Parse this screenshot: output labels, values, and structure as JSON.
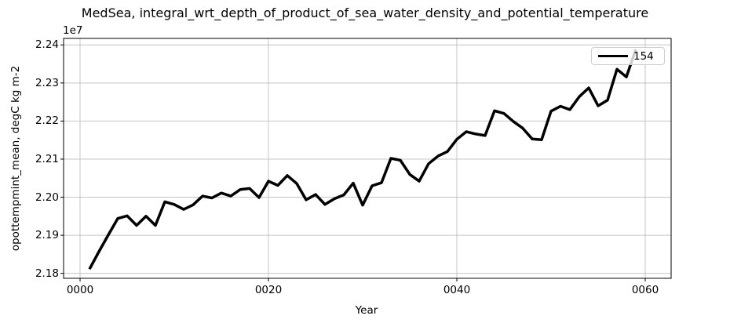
{
  "title": "MedSea, integral_wrt_depth_of_product_of_sea_water_density_and_potential_temperature",
  "legend": {
    "label": "154",
    "line_color": "#000000",
    "position": "upper right"
  },
  "colors": {
    "line": "#000000",
    "grid": "#c4c4c4",
    "spine": "#000000",
    "text": "#000000",
    "legend_border": "#cccccc"
  },
  "chart_data": {
    "type": "line",
    "title": "MedSea, integral_wrt_depth_of_product_of_sea_water_density_and_potential_temperature",
    "xlabel": "Year",
    "ylabel": "opottempmint_mean, degC kg m-2",
    "y_offset_label": "1e7",
    "y_unit_multiplier": 10000000.0,
    "grid": true,
    "xlim": [
      -1.75,
      62.75
    ],
    "ylim": [
      2.1787,
      2.2417
    ],
    "xticks": {
      "values": [
        0,
        20,
        40,
        60
      ],
      "labels": [
        "0000",
        "0020",
        "0040",
        "0060"
      ]
    },
    "yticks": {
      "values": [
        2.18,
        2.19,
        2.2,
        2.21,
        2.22,
        2.23,
        2.24
      ],
      "labels": [
        "2.18",
        "2.19",
        "2.20",
        "2.21",
        "2.22",
        "2.23",
        "2.24"
      ]
    },
    "series": [
      {
        "name": "154",
        "color": "#000000",
        "linewidth": 3.5,
        "x": [
          1,
          2,
          3,
          4,
          5,
          6,
          7,
          8,
          9,
          10,
          11,
          12,
          13,
          14,
          15,
          16,
          17,
          18,
          19,
          20,
          21,
          22,
          23,
          24,
          25,
          26,
          27,
          28,
          29,
          30,
          31,
          32,
          33,
          34,
          35,
          36,
          37,
          38,
          39,
          40,
          41,
          42,
          43,
          44,
          45,
          46,
          47,
          48,
          49,
          50,
          51,
          52,
          53,
          54,
          55,
          56,
          57,
          58,
          59
        ],
        "y": [
          2.1811,
          2.1857,
          2.1901,
          2.1944,
          2.1951,
          2.1926,
          2.195,
          2.1926,
          2.1988,
          2.1981,
          2.1968,
          2.198,
          2.2003,
          2.1998,
          2.2011,
          2.2003,
          2.202,
          2.2023,
          2.1999,
          2.2042,
          2.2031,
          2.2057,
          2.2036,
          2.1993,
          2.2007,
          2.1981,
          2.1996,
          2.2006,
          2.2037,
          2.1979,
          2.203,
          2.2038,
          2.2102,
          2.2097,
          2.206,
          2.2042,
          2.2088,
          2.2108,
          2.212,
          2.2152,
          2.2172,
          2.2166,
          2.2162,
          2.2227,
          2.222,
          2.2199,
          2.2181,
          2.2153,
          2.2151,
          2.2226,
          2.2239,
          2.223,
          2.2264,
          2.2287,
          2.224,
          2.2255,
          2.2336,
          2.2316,
          2.2388
        ]
      }
    ]
  }
}
